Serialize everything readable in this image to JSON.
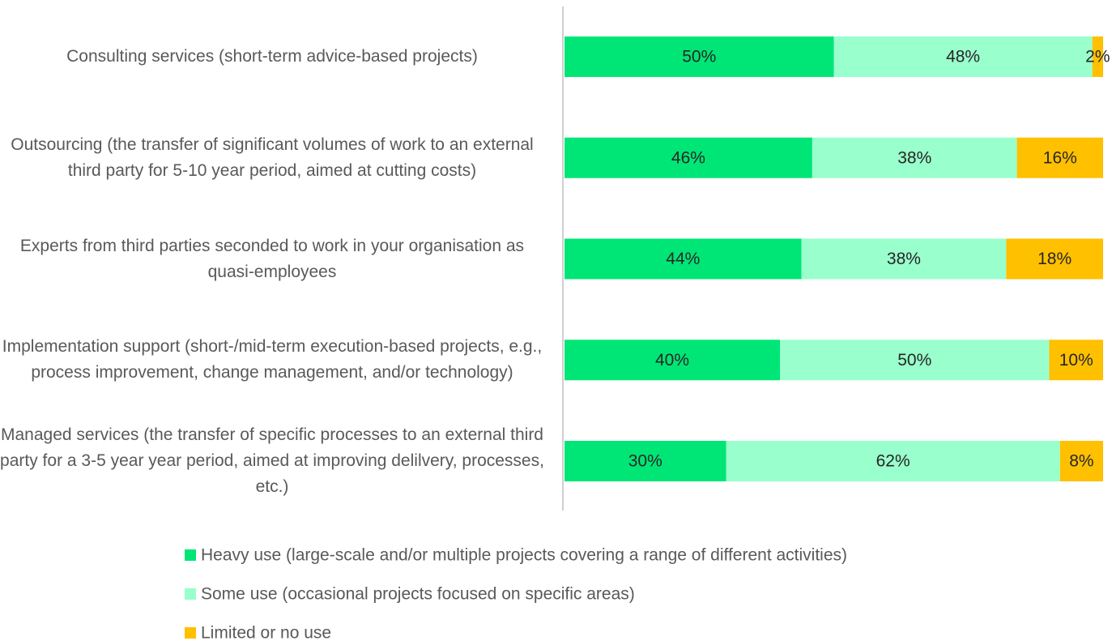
{
  "chart_data": {
    "type": "bar",
    "orientation": "horizontal",
    "stacked": true,
    "categories": [
      "Consulting services (short-term advice-based projects)",
      "Outsourcing (the transfer of significant volumes of work to an external third party for 5-10 year period, aimed at cutting costs)",
      "Experts from third parties seconded to work in your organisation as quasi-employees",
      "Implementation support (short-/mid-term execution-based projects, e.g., process improvement, change management, and/or technology)",
      "Managed services (the transfer of specific processes to an external third party for a 3-5 year year period, aimed at improving delilvery, processes, etc.)"
    ],
    "series": [
      {
        "name": "Heavy use (large-scale and/or multiple projects covering a range of different activities)",
        "color": "#00e676",
        "values": [
          50,
          46,
          44,
          40,
          30
        ],
        "value_labels": [
          "50%",
          "46%",
          "44%",
          "40%",
          "30%"
        ]
      },
      {
        "name": "Some use (occasional projects focused on specific areas)",
        "color": "#99ffcc",
        "values": [
          48,
          38,
          38,
          50,
          62
        ],
        "value_labels": [
          "48%",
          "38%",
          "38%",
          "50%",
          "62%"
        ]
      },
      {
        "name": "Limited or no use",
        "color": "#ffc000",
        "values": [
          2,
          16,
          18,
          10,
          8
        ],
        "value_labels": [
          "2%",
          "16%",
          "18%",
          "10%",
          "8%"
        ]
      }
    ],
    "legend": "bottom"
  }
}
